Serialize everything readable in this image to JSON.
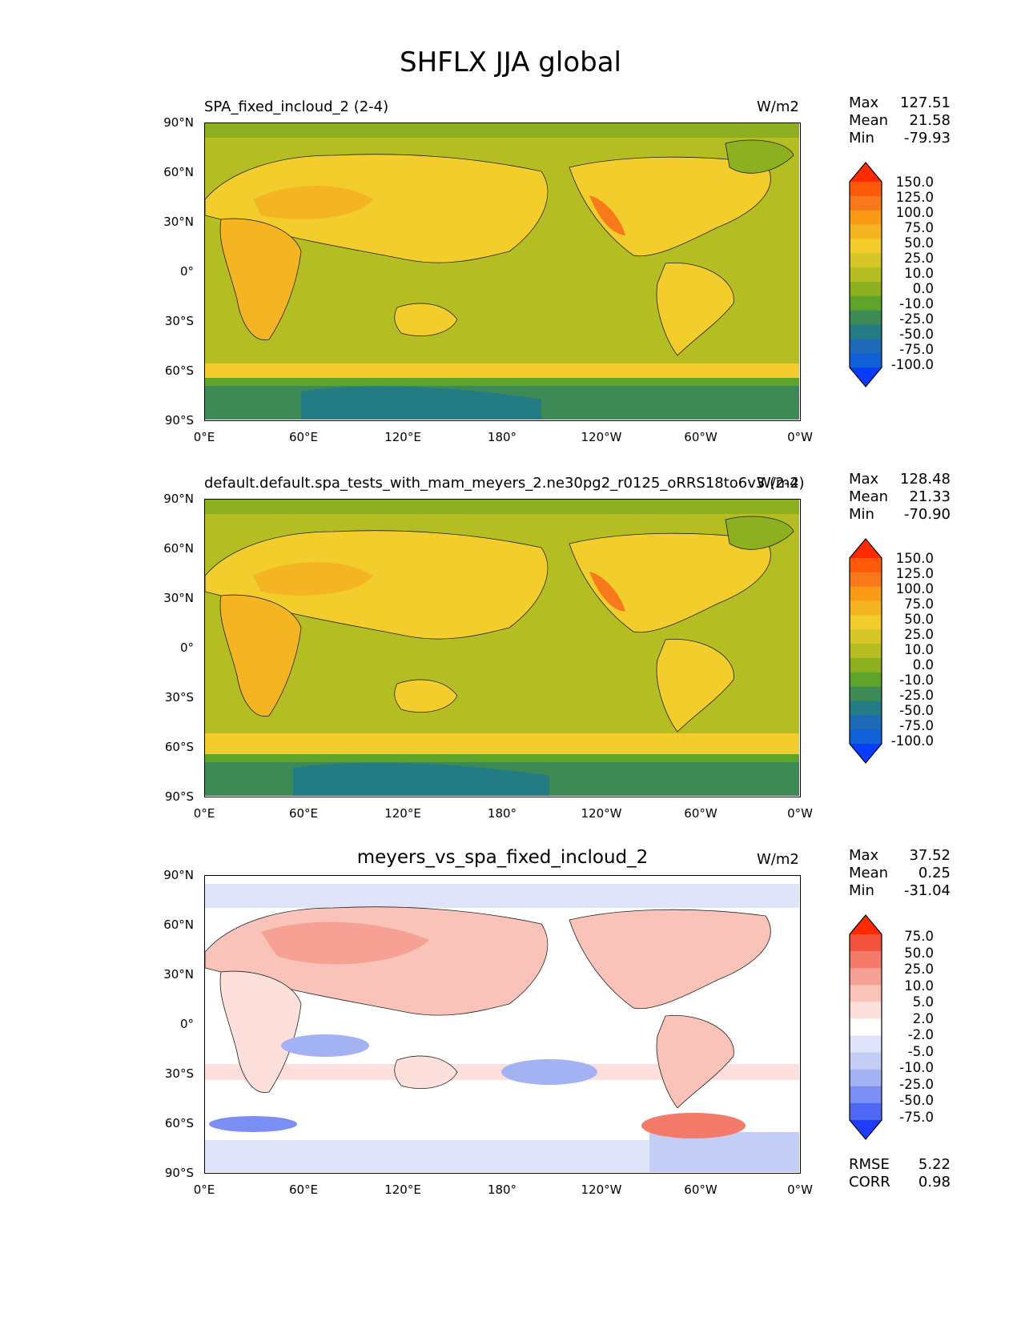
{
  "figure": {
    "title": "SHFLX JJA global"
  },
  "chart_data": [
    {
      "type": "heatmap",
      "title": "SPA_fixed_incloud_2 (2-4)",
      "units": "W/m2",
      "stats": {
        "max_label": "Max",
        "max": "127.51",
        "mean_label": "Mean",
        "mean": "21.58",
        "min_label": "Min",
        "min": "-79.93"
      },
      "x_ticks": [
        "0°E",
        "60°E",
        "120°E",
        "180°",
        "120°W",
        "60°W",
        "0°W"
      ],
      "y_ticks": [
        "90°N",
        "60°N",
        "30°N",
        "0°",
        "30°S",
        "60°S",
        "90°S"
      ],
      "xlim": [
        0,
        360
      ],
      "ylim": [
        -90,
        90
      ],
      "colorbar": {
        "levels": [
          "150.0",
          "125.0",
          "100.0",
          "75.0",
          "50.0",
          "25.0",
          "10.0",
          "0.0",
          "-10.0",
          "-25.0",
          "-50.0",
          "-75.0",
          "-100.0"
        ],
        "colors": [
          "#ff2a00",
          "#ff5a0a",
          "#f7791a",
          "#fb9a14",
          "#f5b422",
          "#f2cd2c",
          "#d6c628",
          "#b4bd22",
          "#8cb020",
          "#5ea42a",
          "#3d8a56",
          "#237c84",
          "#1e6ab8",
          "#1060d8",
          "#0a3cff"
        ]
      }
    },
    {
      "type": "heatmap",
      "title": "default.default.spa_tests_with_mam_meyers_2.ne30pg2_r0125_oRRS18to6v3 (2-4)",
      "units": "W/m2",
      "stats": {
        "max_label": "Max",
        "max": "128.48",
        "mean_label": "Mean",
        "mean": "21.33",
        "min_label": "Min",
        "min": "-70.90"
      },
      "x_ticks": [
        "0°E",
        "60°E",
        "120°E",
        "180°",
        "120°W",
        "60°W",
        "0°W"
      ],
      "y_ticks": [
        "90°N",
        "60°N",
        "30°N",
        "0°",
        "30°S",
        "60°S",
        "90°S"
      ],
      "xlim": [
        0,
        360
      ],
      "ylim": [
        -90,
        90
      ],
      "colorbar": {
        "levels": [
          "150.0",
          "125.0",
          "100.0",
          "75.0",
          "50.0",
          "25.0",
          "10.0",
          "0.0",
          "-10.0",
          "-25.0",
          "-50.0",
          "-75.0",
          "-100.0"
        ],
        "colors": [
          "#ff2a00",
          "#ff5a0a",
          "#f7791a",
          "#fb9a14",
          "#f5b422",
          "#f2cd2c",
          "#d6c628",
          "#b4bd22",
          "#8cb020",
          "#5ea42a",
          "#3d8a56",
          "#237c84",
          "#1e6ab8",
          "#1060d8",
          "#0a3cff"
        ]
      }
    },
    {
      "type": "heatmap",
      "title": "meyers_vs_spa_fixed_incloud_2",
      "units": "W/m2",
      "stats": {
        "max_label": "Max",
        "max": "37.52",
        "mean_label": "Mean",
        "mean": "0.25",
        "min_label": "Min",
        "min": "-31.04"
      },
      "x_ticks": [
        "0°E",
        "60°E",
        "120°E",
        "180°",
        "120°W",
        "60°W",
        "0°W"
      ],
      "y_ticks": [
        "90°N",
        "60°N",
        "30°N",
        "0°",
        "30°S",
        "60°S",
        "90°S"
      ],
      "xlim": [
        0,
        360
      ],
      "ylim": [
        -90,
        90
      ],
      "colorbar": {
        "levels": [
          "75.0",
          "50.0",
          "25.0",
          "10.0",
          "5.0",
          "2.0",
          "-2.0",
          "-5.0",
          "-10.0",
          "-25.0",
          "-50.0",
          "-75.0"
        ],
        "colors": [
          "#ff2a00",
          "#f2523e",
          "#f47a6a",
          "#f7a094",
          "#fac3ba",
          "#fde0dc",
          "#ffffff",
          "#dfe4fb",
          "#c4cdf6",
          "#a3b2f2",
          "#7b8ef3",
          "#5069f5",
          "#1f3cff"
        ]
      },
      "metrics": {
        "rmse_label": "RMSE",
        "rmse": "5.22",
        "corr_label": "CORR",
        "corr": "0.98"
      }
    }
  ]
}
